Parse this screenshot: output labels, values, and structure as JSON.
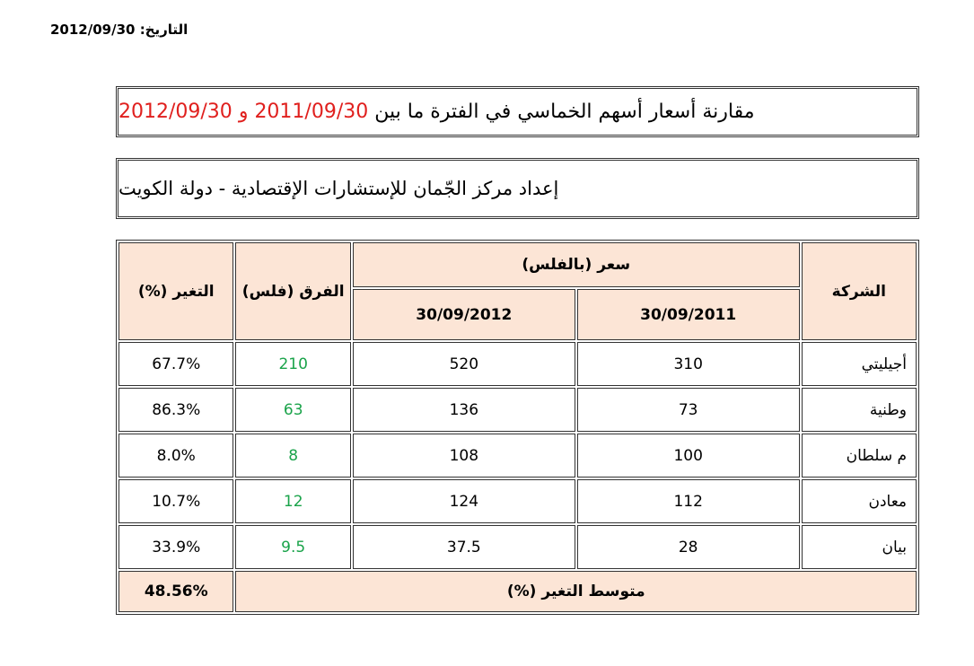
{
  "date_line": {
    "label": "التاريخ:",
    "value": "2012/09/30"
  },
  "title": {
    "text": "مقارنة أسعار أسهم الخماسي في الفترة ما بين",
    "date_from": "2011/09/30",
    "connector": "و",
    "date_to": "2012/09/30"
  },
  "subtitle": "إعداد مركز الجّمان للإستشارات الإقتصادية - دولة الكويت",
  "table": {
    "headers": {
      "company": "الشركة",
      "price_group": "سعر (بالفلس)",
      "date_2011": "30/09/2011",
      "date_2012": "30/09/2012",
      "diff": "الفرق (فلس)",
      "change": "التغير (%)"
    },
    "rows": [
      {
        "company": "أجيليتي",
        "p2011": "310",
        "p2012": "520",
        "diff": "210",
        "change": "67.7%"
      },
      {
        "company": "وطنية",
        "p2011": "73",
        "p2012": "136",
        "diff": "63",
        "change": "86.3%"
      },
      {
        "company": "م سلطان",
        "p2011": "100",
        "p2012": "108",
        "diff": "8",
        "change": "8.0%"
      },
      {
        "company": "معادن",
        "p2011": "112",
        "p2012": "124",
        "diff": "12",
        "change": "10.7%"
      },
      {
        "company": "بيان",
        "p2011": "28",
        "p2012": "37.5",
        "diff": "9.5",
        "change": "33.9%"
      }
    ],
    "footer": {
      "label": "متوسط التغير (%)",
      "value": "48.56%"
    }
  }
}
